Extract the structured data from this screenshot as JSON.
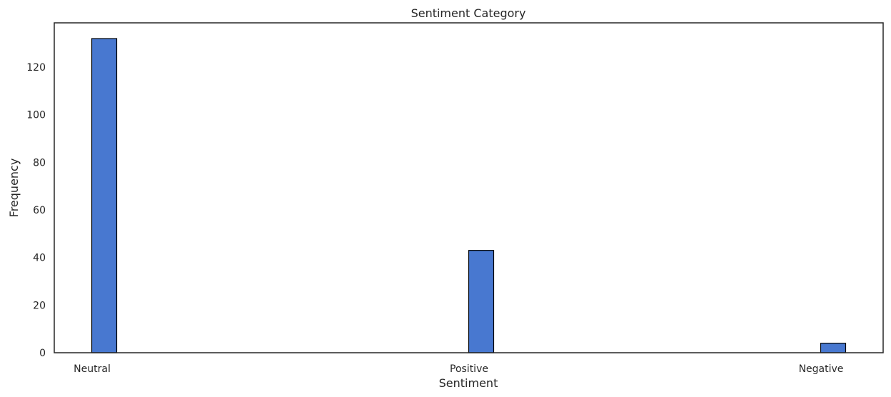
{
  "chart_data": {
    "type": "bar",
    "title": "Sentiment Category",
    "xlabel": "Sentiment",
    "ylabel": "Frequency",
    "categories": [
      "Neutral",
      "Positive",
      "Negative"
    ],
    "values": [
      132,
      43,
      4
    ],
    "ylim": [
      0,
      138.6
    ],
    "yticks": [
      0,
      20,
      40,
      60,
      80,
      100,
      120
    ],
    "grid": false,
    "bar_color": "#4878d0",
    "edge_color": "#000000"
  }
}
